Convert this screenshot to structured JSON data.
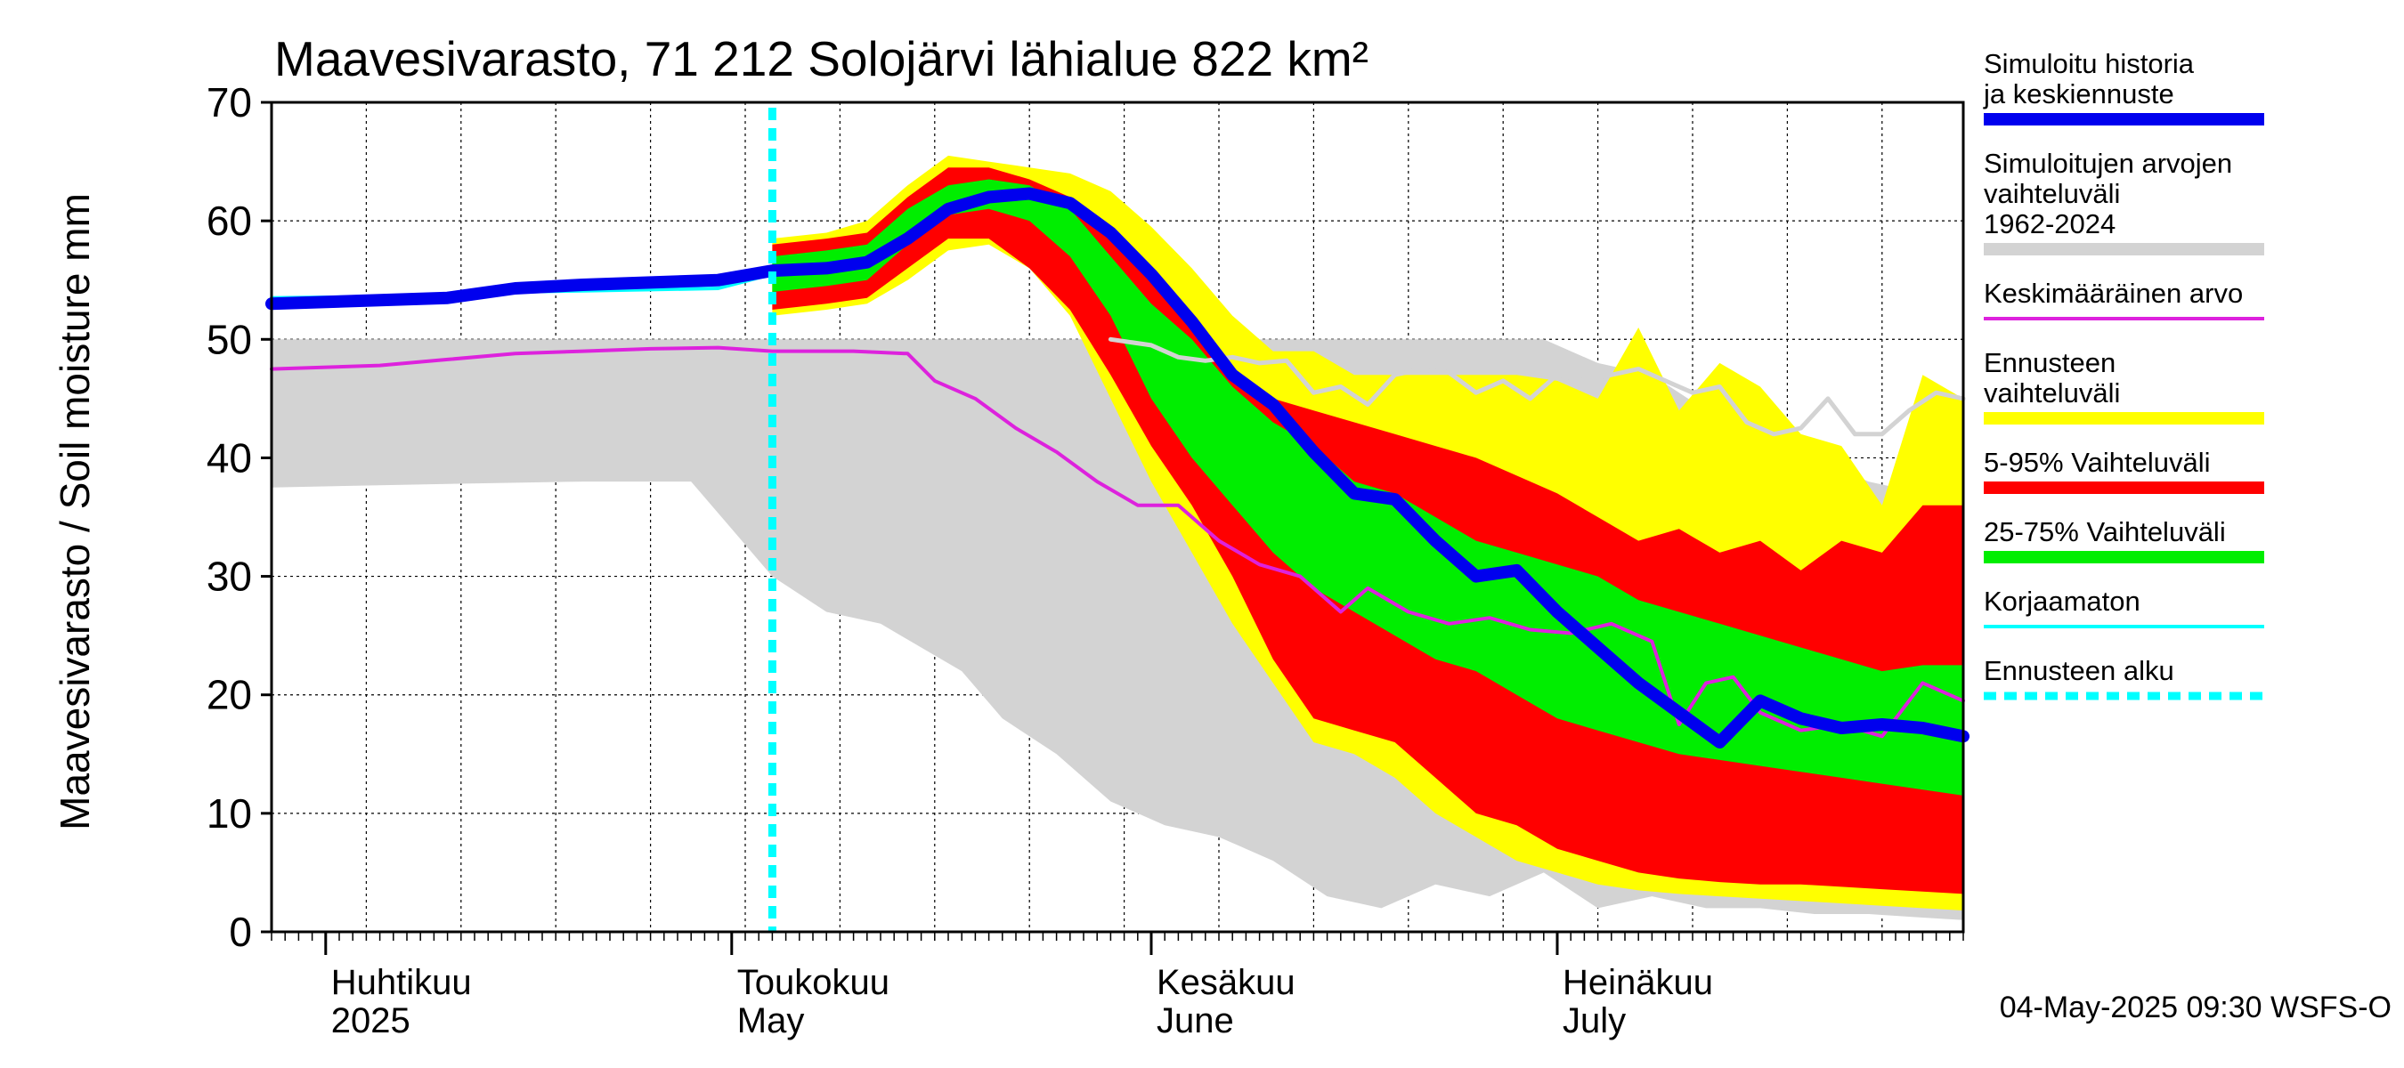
{
  "chart_data": {
    "type": "area",
    "title": "Maavesivarasto, 71 212 Solojärvi lähialue 822 km²",
    "ylabel": "Maavesivarasto / Soil moisture   mm",
    "ylim": [
      0,
      70
    ],
    "yticks": [
      0,
      10,
      20,
      30,
      40,
      50,
      60,
      70
    ],
    "xlim": [
      "2025-03-28",
      "2025-07-31"
    ],
    "forecast_start": "2025-05-04",
    "month_labels": [
      {
        "date": "2025-04-01",
        "line1": "Huhtikuu",
        "line2": "2025"
      },
      {
        "date": "2025-05-01",
        "line1": "Toukokuu",
        "line2": "May"
      },
      {
        "date": "2025-06-01",
        "line1": "Kesäkuu",
        "line2": "June"
      },
      {
        "date": "2025-07-01",
        "line1": "Heinäkuu",
        "line2": "July"
      }
    ],
    "grid": true,
    "legend_position": "right",
    "footer": "04-May-2025 09:30 WSFS-O",
    "colors": {
      "history_mean": "#0000ee",
      "sim_range": "#d3d3d3",
      "average": "#dd22dd",
      "forecast_range": "#ffff00",
      "p5_95": "#ff0000",
      "p25_75": "#00ee00",
      "uncorrected": "#00ffff",
      "forecast_start": "#00ffff",
      "median_sim": "#d3d3d3"
    },
    "legend": [
      {
        "key": "history_mean",
        "label": "Simuloitu historia ja keskiennuste",
        "style": "thick"
      },
      {
        "key": "sim_range",
        "label": "Simuloitujen arvojen vaihteluväli 1962-2024",
        "style": "thick"
      },
      {
        "key": "average",
        "label": "Keskimääräinen arvo",
        "style": "thin"
      },
      {
        "key": "forecast_range",
        "label": "Ennusteen vaihteluväli",
        "style": "thick"
      },
      {
        "key": "p5_95",
        "label": "5-95% Vaihteluväli",
        "style": "thick"
      },
      {
        "key": "p25_75",
        "label": "25-75% Vaihteluväli",
        "style": "thick"
      },
      {
        "key": "uncorrected",
        "label": "Korjaamaton",
        "style": "thin"
      },
      {
        "key": "forecast_start",
        "label": "Ennusteen alku",
        "style": "dashed"
      }
    ],
    "series": {
      "sim_range": {
        "x": [
          "2025-03-28",
          "2025-04-10",
          "2025-04-20",
          "2025-04-28",
          "2025-05-01",
          "2025-05-04",
          "2025-05-08",
          "2025-05-12",
          "2025-05-15",
          "2025-05-18",
          "2025-05-21",
          "2025-05-25",
          "2025-05-29",
          "2025-06-02",
          "2025-06-06",
          "2025-06-10",
          "2025-06-14",
          "2025-06-18",
          "2025-06-22",
          "2025-06-26",
          "2025-06-30",
          "2025-07-04",
          "2025-07-08",
          "2025-07-12",
          "2025-07-16",
          "2025-07-20",
          "2025-07-24",
          "2025-07-28",
          "2025-07-31"
        ],
        "upper": [
          50,
          50,
          50,
          50,
          50,
          50,
          50,
          50,
          50,
          50,
          50,
          50,
          50,
          50,
          50,
          50,
          50,
          50,
          50,
          50,
          50,
          48,
          47,
          44,
          42,
          40,
          38,
          37,
          37
        ],
        "lower": [
          37.5,
          37.8,
          38,
          38,
          34,
          30,
          27,
          26,
          24,
          22,
          18,
          15,
          11,
          9,
          8,
          6,
          3,
          2,
          4,
          3,
          5,
          2,
          3,
          2,
          2,
          1.5,
          1.5,
          1.2,
          1
        ]
      },
      "forecast_range": {
        "x": [
          "2025-05-04",
          "2025-05-08",
          "2025-05-11",
          "2025-05-14",
          "2025-05-17",
          "2025-05-20",
          "2025-05-23",
          "2025-05-26",
          "2025-05-29",
          "2025-06-01",
          "2025-06-04",
          "2025-06-07",
          "2025-06-10",
          "2025-06-13",
          "2025-06-16",
          "2025-06-19",
          "2025-06-22",
          "2025-06-25",
          "2025-06-28",
          "2025-07-01",
          "2025-07-04",
          "2025-07-07",
          "2025-07-10",
          "2025-07-13",
          "2025-07-16",
          "2025-07-19",
          "2025-07-22",
          "2025-07-25",
          "2025-07-28",
          "2025-07-31"
        ],
        "upper": [
          58.5,
          59,
          60,
          63,
          65.5,
          65,
          64.5,
          64,
          62.5,
          59.5,
          56,
          52,
          49,
          49,
          47,
          47,
          47,
          47,
          47,
          46.5,
          45,
          51,
          44,
          48,
          46,
          42,
          41,
          36,
          47,
          45
        ],
        "lower": [
          52,
          52.5,
          53,
          55,
          57.5,
          58,
          56,
          52,
          45,
          38,
          32,
          26,
          21,
          16,
          15,
          13,
          10,
          8,
          6,
          5,
          4,
          3.5,
          3.2,
          3,
          2.8,
          2.6,
          2.4,
          2.2,
          2,
          1.8
        ]
      },
      "p5_95": {
        "x": [
          "2025-05-04",
          "2025-05-08",
          "2025-05-11",
          "2025-05-14",
          "2025-05-17",
          "2025-05-20",
          "2025-05-23",
          "2025-05-26",
          "2025-05-29",
          "2025-06-01",
          "2025-06-04",
          "2025-06-07",
          "2025-06-10",
          "2025-06-13",
          "2025-06-16",
          "2025-06-19",
          "2025-06-22",
          "2025-06-25",
          "2025-06-28",
          "2025-07-01",
          "2025-07-04",
          "2025-07-07",
          "2025-07-10",
          "2025-07-13",
          "2025-07-16",
          "2025-07-19",
          "2025-07-22",
          "2025-07-25",
          "2025-07-28",
          "2025-07-31"
        ],
        "upper": [
          58,
          58.5,
          59,
          62,
          64.5,
          64.5,
          63.5,
          62,
          59.5,
          55.5,
          51,
          47,
          45,
          44,
          43,
          42,
          41,
          40,
          38.5,
          37,
          35,
          33,
          34,
          32,
          33,
          30.5,
          33,
          32,
          36,
          36
        ],
        "lower": [
          52.5,
          53,
          53.5,
          56,
          58.5,
          58.5,
          56,
          52.5,
          47,
          41,
          36,
          30,
          23,
          18,
          17,
          16,
          13,
          10,
          9,
          7,
          6,
          5,
          4.5,
          4.2,
          4,
          4,
          3.8,
          3.6,
          3.4,
          3.2
        ]
      },
      "p25_75": {
        "x": [
          "2025-05-04",
          "2025-05-08",
          "2025-05-11",
          "2025-05-14",
          "2025-05-17",
          "2025-05-20",
          "2025-05-23",
          "2025-05-26",
          "2025-05-29",
          "2025-06-01",
          "2025-06-04",
          "2025-06-07",
          "2025-06-10",
          "2025-06-13",
          "2025-06-16",
          "2025-06-19",
          "2025-06-22",
          "2025-06-25",
          "2025-06-28",
          "2025-07-01",
          "2025-07-04",
          "2025-07-07",
          "2025-07-10",
          "2025-07-13",
          "2025-07-16",
          "2025-07-19",
          "2025-07-22",
          "2025-07-25",
          "2025-07-28",
          "2025-07-31"
        ],
        "upper": [
          57,
          57.5,
          58,
          61,
          63,
          63.5,
          63,
          61,
          57,
          53,
          50,
          46,
          43,
          41,
          38,
          37,
          35,
          33,
          32,
          31,
          30,
          28,
          27,
          26,
          25,
          24,
          23,
          22,
          22.5,
          22.5
        ],
        "lower": [
          54,
          54.5,
          55,
          58,
          60.5,
          61,
          60,
          57,
          52,
          45,
          40,
          36,
          32,
          29,
          27,
          25,
          23,
          22,
          20,
          18,
          17,
          16,
          15,
          14.5,
          14,
          13.5,
          13,
          12.5,
          12,
          11.5
        ]
      },
      "history_mean": {
        "x": [
          "2025-03-28",
          "2025-04-05",
          "2025-04-10",
          "2025-04-15",
          "2025-04-20",
          "2025-04-25",
          "2025-04-30",
          "2025-05-04",
          "2025-05-08",
          "2025-05-11",
          "2025-05-14",
          "2025-05-17",
          "2025-05-20",
          "2025-05-23",
          "2025-05-26",
          "2025-05-29",
          "2025-06-01",
          "2025-06-04",
          "2025-06-07",
          "2025-06-10",
          "2025-06-13",
          "2025-06-16",
          "2025-06-19",
          "2025-06-22",
          "2025-06-25",
          "2025-06-28",
          "2025-07-01",
          "2025-07-04",
          "2025-07-07",
          "2025-07-10",
          "2025-07-13",
          "2025-07-16",
          "2025-07-19",
          "2025-07-22",
          "2025-07-25",
          "2025-07-28",
          "2025-07-31"
        ],
        "values": [
          53,
          53.3,
          53.5,
          54.3,
          54.6,
          54.8,
          55,
          55.8,
          56,
          56.5,
          58.5,
          61,
          62,
          62.3,
          61.5,
          59,
          55.5,
          51.5,
          47,
          44.5,
          40.5,
          37,
          36.5,
          33,
          30,
          30.5,
          27,
          24,
          21,
          18.5,
          16,
          19.5,
          18,
          17.2,
          17.5,
          17.2,
          16.5
        ]
      },
      "uncorrected": {
        "x": [
          "2025-03-28",
          "2025-04-05",
          "2025-04-10",
          "2025-04-15",
          "2025-04-20",
          "2025-04-25",
          "2025-04-30",
          "2025-05-04"
        ],
        "values": [
          53.5,
          53.6,
          53.8,
          54,
          54.1,
          54.2,
          54.3,
          55.5
        ]
      },
      "median_sim": {
        "x": [
          "2025-05-29",
          "2025-06-01",
          "2025-06-03",
          "2025-06-05",
          "2025-06-07",
          "2025-06-09",
          "2025-06-11",
          "2025-06-13",
          "2025-06-15",
          "2025-06-17",
          "2025-06-19",
          "2025-06-21",
          "2025-06-23",
          "2025-06-25",
          "2025-06-27",
          "2025-06-29",
          "2025-07-01",
          "2025-07-03",
          "2025-07-05",
          "2025-07-07",
          "2025-07-09",
          "2025-07-11",
          "2025-07-13",
          "2025-07-15",
          "2025-07-17",
          "2025-07-19",
          "2025-07-21",
          "2025-07-23",
          "2025-07-25",
          "2025-07-27",
          "2025-07-29",
          "2025-07-31"
        ],
        "values": [
          50,
          49.5,
          48.5,
          48.2,
          48.5,
          48,
          48.2,
          45.5,
          46,
          44.5,
          47,
          47.5,
          47.2,
          45.5,
          46.5,
          45,
          47,
          46.5,
          47,
          47.5,
          46.5,
          45.5,
          46,
          43,
          42,
          42.5,
          45,
          42,
          42,
          44,
          45.5,
          45
        ]
      },
      "average": {
        "x": [
          "2025-03-28",
          "2025-04-05",
          "2025-04-10",
          "2025-04-15",
          "2025-04-20",
          "2025-04-25",
          "2025-04-30",
          "2025-05-04",
          "2025-05-10",
          "2025-05-14",
          "2025-05-16",
          "2025-05-19",
          "2025-05-22",
          "2025-05-25",
          "2025-05-28",
          "2025-05-31",
          "2025-06-03",
          "2025-06-06",
          "2025-06-09",
          "2025-06-12",
          "2025-06-15",
          "2025-06-17",
          "2025-06-20",
          "2025-06-23",
          "2025-06-26",
          "2025-06-29",
          "2025-07-02",
          "2025-07-05",
          "2025-07-08",
          "2025-07-10",
          "2025-07-12",
          "2025-07-14",
          "2025-07-16",
          "2025-07-19",
          "2025-07-22",
          "2025-07-25",
          "2025-07-28",
          "2025-07-31"
        ],
        "values": [
          47.5,
          47.8,
          48.3,
          48.8,
          49,
          49.2,
          49.3,
          49,
          49,
          48.8,
          46.5,
          45,
          42.5,
          40.5,
          38,
          36,
          36,
          33,
          31,
          30,
          27,
          29,
          27,
          26,
          26.5,
          25.5,
          25.2,
          26,
          24.5,
          17.5,
          21,
          21.5,
          18.5,
          17,
          17.5,
          16.5,
          21,
          19.5
        ]
      }
    }
  }
}
